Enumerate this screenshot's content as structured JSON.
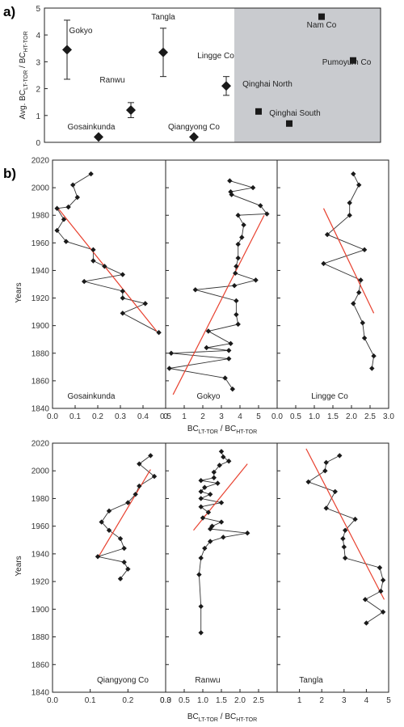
{
  "chart_data": [
    {
      "type": "scatter",
      "panel_label": "a)",
      "ylabel_main": "Avg. BC",
      "ylabel_sub1": "LT-TOR",
      "ylabel_mid": " / BC",
      "ylabel_sub2": "HT-TOR",
      "ylim": [
        0,
        5
      ],
      "yticks": [
        "0",
        "1",
        "2",
        "3",
        "4",
        "5"
      ],
      "shaded_region": "right",
      "series": [
        {
          "marker": "diamond",
          "points": [
            {
              "label": "Gokyo",
              "y": 3.45,
              "err": 1.1
            },
            {
              "label": "Gosainkunda",
              "y": 0.2,
              "err": 0
            },
            {
              "label": "Ranwu",
              "y": 1.2,
              "err": 0.28
            },
            {
              "label": "Tangla",
              "y": 3.35,
              "err": 0.9
            },
            {
              "label": "Qiangyong Co",
              "y": 0.2,
              "err": 0
            },
            {
              "label": "Lingge Co",
              "y": 2.1,
              "err": 0.35
            }
          ]
        },
        {
          "marker": "square",
          "points": [
            {
              "label": "Qinghai North",
              "y": 1.15
            },
            {
              "label": "Qinghai South",
              "y": 0.7
            },
            {
              "label": "Nam Co",
              "y": 4.68
            },
            {
              "label": "Pumoyum Co",
              "y": 3.05
            }
          ]
        }
      ]
    },
    {
      "type": "line",
      "panel_label": "b)",
      "ylabel": "Years",
      "xlabel_main": "BC",
      "xlabel_sub1": "LT-TOR",
      "xlabel_mid": " / BC",
      "xlabel_sub2": "HT-TOR",
      "ylim": [
        1840,
        2020
      ],
      "yticks": [
        "1840",
        "1860",
        "1880",
        "1900",
        "1920",
        "1940",
        "1960",
        "1980",
        "2000",
        "2020"
      ],
      "trend_color": "#e8412f",
      "panels": [
        {
          "site": "Gosainkunda",
          "xlim": [
            0,
            0.5
          ],
          "xticks": [
            "0.0",
            "0.1",
            "0.2",
            "0.3",
            "0.4",
            "0.5"
          ],
          "points": [
            [
              0.17,
              2010
            ],
            [
              0.09,
              2002
            ],
            [
              0.11,
              1993
            ],
            [
              0.07,
              1986
            ],
            [
              0.02,
              1985
            ],
            [
              0.05,
              1977
            ],
            [
              0.02,
              1969
            ],
            [
              0.06,
              1961
            ],
            [
              0.18,
              1955
            ],
            [
              0.18,
              1947
            ],
            [
              0.23,
              1943
            ],
            [
              0.31,
              1937
            ],
            [
              0.14,
              1932
            ],
            [
              0.31,
              1925
            ],
            [
              0.31,
              1920
            ],
            [
              0.41,
              1916
            ],
            [
              0.31,
              1909
            ],
            [
              0.47,
              1895
            ]
          ],
          "trend": [
            [
              0.02,
              1986
            ],
            [
              0.46,
              1896
            ]
          ]
        },
        {
          "site": "Gokyo",
          "xlim": [
            0,
            6
          ],
          "xticks": [
            "0",
            "1",
            "2",
            "3",
            "4",
            "5"
          ],
          "points": [
            [
              3.45,
              2005
            ],
            [
              4.7,
              2000
            ],
            [
              3.5,
              1997
            ],
            [
              3.55,
              1995
            ],
            [
              5.1,
              1987
            ],
            [
              5.45,
              1981
            ],
            [
              3.9,
              1980
            ],
            [
              4.2,
              1973
            ],
            [
              4.1,
              1964
            ],
            [
              3.9,
              1959
            ],
            [
              3.9,
              1949
            ],
            [
              3.8,
              1943
            ],
            [
              3.75,
              1938
            ],
            [
              4.85,
              1933
            ],
            [
              3.7,
              1929
            ],
            [
              1.6,
              1926
            ],
            [
              3.8,
              1918
            ],
            [
              3.8,
              1908
            ],
            [
              3.9,
              1901
            ],
            [
              2.3,
              1896
            ],
            [
              3.5,
              1887
            ],
            [
              2.2,
              1884
            ],
            [
              3.4,
              1882
            ],
            [
              0.3,
              1880
            ],
            [
              3.4,
              1876
            ],
            [
              0.2,
              1869
            ],
            [
              3.2,
              1862
            ],
            [
              3.6,
              1854
            ]
          ],
          "trend": [
            [
              0.4,
              1850
            ],
            [
              5.3,
              1980
            ]
          ]
        },
        {
          "site": "Lingge Co",
          "xlim": [
            0,
            3
          ],
          "xticks": [
            "0.0",
            "0.5",
            "1.0",
            "1.5",
            "2.0",
            "2.5",
            "3.0"
          ],
          "points": [
            [
              2.05,
              2010
            ],
            [
              2.2,
              2002
            ],
            [
              1.95,
              1989
            ],
            [
              1.95,
              1980
            ],
            [
              1.35,
              1966
            ],
            [
              2.35,
              1955
            ],
            [
              1.25,
              1945
            ],
            [
              2.25,
              1933
            ],
            [
              2.2,
              1924
            ],
            [
              2.05,
              1916
            ],
            [
              2.3,
              1902
            ],
            [
              2.35,
              1891
            ],
            [
              2.6,
              1878
            ],
            [
              2.55,
              1869
            ]
          ],
          "trend": [
            [
              1.25,
              1985
            ],
            [
              2.6,
              1909
            ]
          ]
        },
        {
          "site": "Qiangyong Co",
          "xlim": [
            0,
            0.3
          ],
          "xticks": [
            "0.0",
            "0.1",
            "0.2",
            "0.3"
          ],
          "points": [
            [
              0.26,
              2011
            ],
            [
              0.23,
              2005
            ],
            [
              0.27,
              1996
            ],
            [
              0.23,
              1989
            ],
            [
              0.22,
              1983
            ],
            [
              0.2,
              1977
            ],
            [
              0.15,
              1971
            ],
            [
              0.13,
              1963
            ],
            [
              0.15,
              1957
            ],
            [
              0.18,
              1951
            ],
            [
              0.19,
              1944
            ],
            [
              0.12,
              1938
            ],
            [
              0.19,
              1934
            ],
            [
              0.2,
              1929
            ],
            [
              0.18,
              1922
            ]
          ],
          "trend": [
            [
              0.12,
              1937
            ],
            [
              0.26,
              2001
            ]
          ]
        },
        {
          "site": "Ranwu",
          "xlim": [
            0,
            3
          ],
          "xticks": [
            "0.0",
            "0.5",
            "1.0",
            "1.5",
            "2.0",
            "2.5"
          ],
          "points": [
            [
              1.5,
              2014
            ],
            [
              1.55,
              2010
            ],
            [
              1.7,
              2007
            ],
            [
              1.45,
              2004
            ],
            [
              1.3,
              1999
            ],
            [
              1.3,
              1995
            ],
            [
              0.95,
              1993
            ],
            [
              1.4,
              1991
            ],
            [
              1.05,
              1988
            ],
            [
              0.95,
              1985
            ],
            [
              1.2,
              1983
            ],
            [
              0.95,
              1980
            ],
            [
              1.5,
              1977
            ],
            [
              0.95,
              1974
            ],
            [
              1.15,
              1970
            ],
            [
              1.0,
              1966
            ],
            [
              1.5,
              1963
            ],
            [
              1.25,
              1960
            ],
            [
              1.2,
              1958
            ],
            [
              2.2,
              1955
            ],
            [
              1.55,
              1952
            ],
            [
              1.2,
              1949
            ],
            [
              1.05,
              1944
            ],
            [
              0.95,
              1937
            ],
            [
              0.9,
              1925
            ],
            [
              0.95,
              1902
            ],
            [
              0.95,
              1883
            ]
          ],
          "trend": [
            [
              0.75,
              1957
            ],
            [
              2.2,
              2005
            ]
          ]
        },
        {
          "site": "Tangla",
          "xlim": [
            0,
            5
          ],
          "xticks": [
            "1",
            "2",
            "3",
            "4",
            "5"
          ],
          "points": [
            [
              2.8,
              2011
            ],
            [
              2.2,
              2006
            ],
            [
              2.15,
              2000
            ],
            [
              1.4,
              1992
            ],
            [
              2.6,
              1985
            ],
            [
              2.2,
              1973
            ],
            [
              3.5,
              1965
            ],
            [
              3.05,
              1957
            ],
            [
              2.95,
              1951
            ],
            [
              3.0,
              1945
            ],
            [
              3.05,
              1937
            ],
            [
              4.6,
              1930
            ],
            [
              4.75,
              1921
            ],
            [
              4.65,
              1913
            ],
            [
              3.95,
              1907
            ],
            [
              4.75,
              1898
            ],
            [
              4.0,
              1890
            ]
          ],
          "trend": [
            [
              1.3,
              2016
            ],
            [
              4.8,
              1907
            ]
          ]
        }
      ]
    }
  ]
}
